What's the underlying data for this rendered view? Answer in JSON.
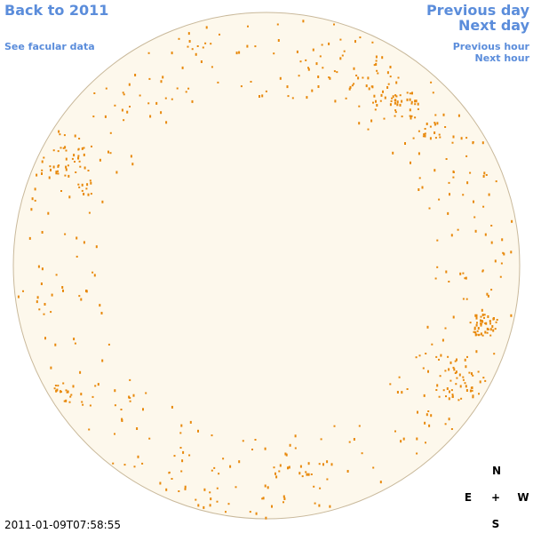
{
  "nav": {
    "back": "Back to 2011",
    "facular": "See facular data",
    "previous_day": "Previous day",
    "next_day": "Next day",
    "previous_hour": "Previous hour",
    "next_hour": "Next hour"
  },
  "timestamp": "2011-01-09T07:58:55",
  "compass": {
    "north": "N",
    "east": "E",
    "center": "+",
    "west": "W",
    "south": "S"
  }
}
